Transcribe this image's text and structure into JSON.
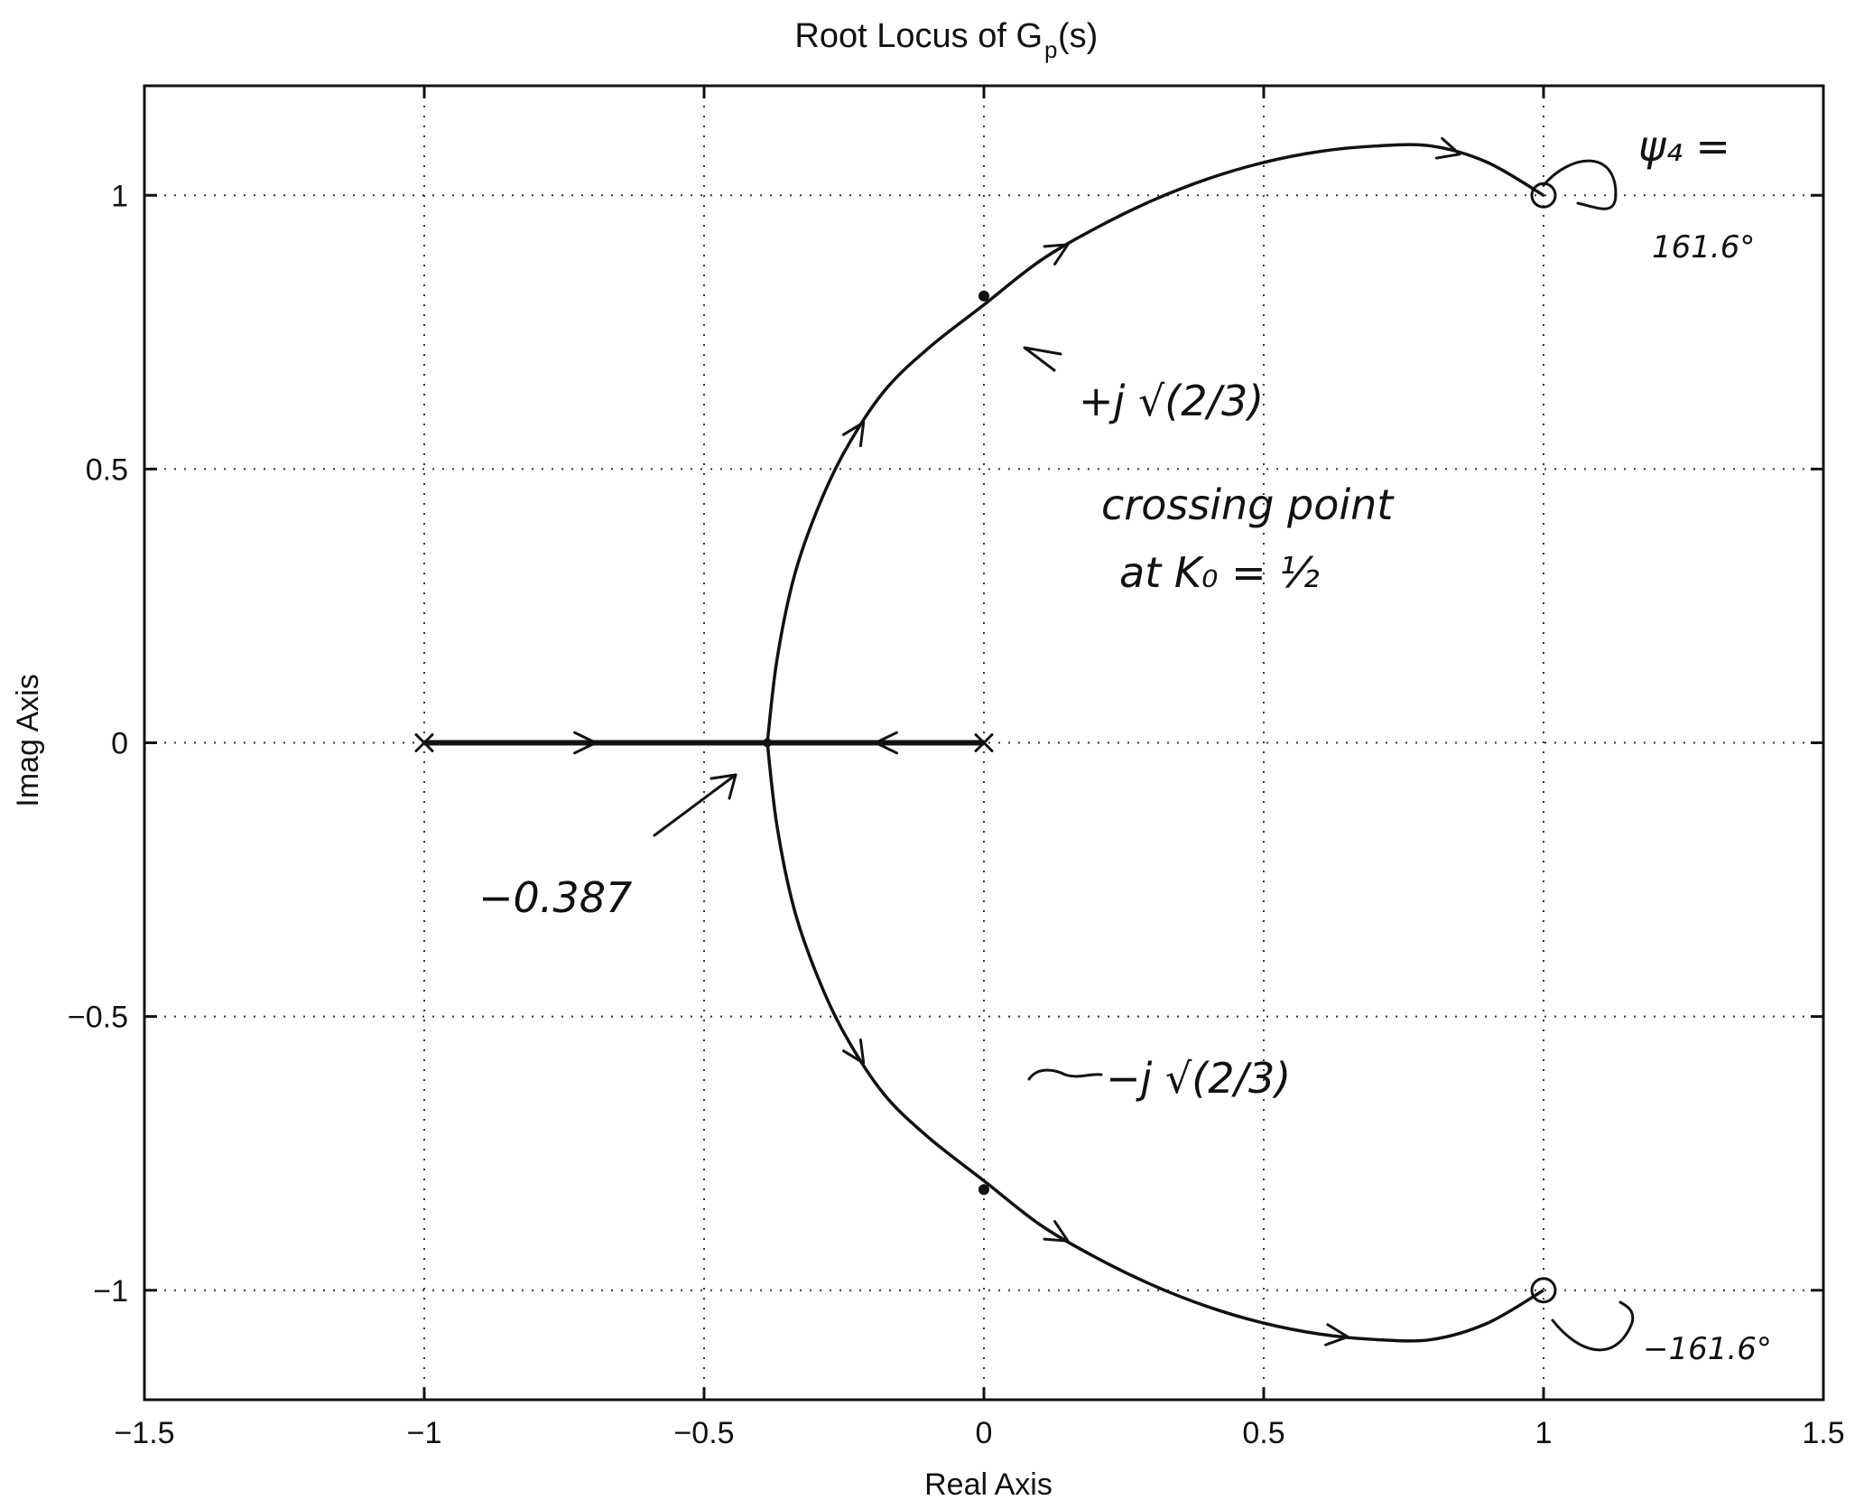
{
  "chart_data": {
    "type": "scatter",
    "title": "Root Locus of G",
    "title_subscript": "p",
    "title_suffix": "(s)",
    "xlabel": "Real Axis",
    "ylabel": "Imag Axis",
    "xlim": [
      -1.5,
      1.5
    ],
    "ylim": [
      -1.2,
      1.2
    ],
    "x_ticks": [
      -1.5,
      -1,
      -0.5,
      0,
      0.5,
      1,
      1.5
    ],
    "x_tick_labels": [
      "−1.5",
      "−1",
      "−0.5",
      "0",
      "0.5",
      "1",
      "1.5"
    ],
    "y_ticks": [
      -1,
      -0.5,
      0,
      0.5,
      1
    ],
    "y_tick_labels": [
      "−1",
      "−0.5",
      "0",
      "0.5",
      "1"
    ],
    "grid": true,
    "poles": [
      {
        "x": -1,
        "y": 0
      },
      {
        "x": 0,
        "y": 0
      }
    ],
    "zeros": [
      {
        "x": 1,
        "y": 1
      },
      {
        "x": 1,
        "y": -1
      }
    ],
    "breakaway_point": {
      "x": -0.387,
      "y": 0
    },
    "crossing_points": [
      {
        "x": 0,
        "y": 0.816
      },
      {
        "x": 0,
        "y": -0.816
      }
    ],
    "series": [
      {
        "branch": "real-axis segment",
        "x": [
          -1,
          -0.387,
          0
        ],
        "y": [
          0,
          0,
          0
        ]
      },
      {
        "branch": "upper branch",
        "x": [
          -0.387,
          -0.37,
          -0.34,
          -0.3,
          -0.25,
          -0.18,
          -0.1,
          0,
          0.1,
          0.2,
          0.3,
          0.4,
          0.5,
          0.6,
          0.7,
          0.8,
          0.9,
          1.0
        ],
        "y": [
          0,
          0.15,
          0.3,
          0.42,
          0.53,
          0.64,
          0.72,
          0.8,
          0.88,
          0.94,
          0.99,
          1.03,
          1.06,
          1.08,
          1.09,
          1.09,
          1.06,
          1.0
        ]
      },
      {
        "branch": "lower branch",
        "x": [
          -0.387,
          -0.37,
          -0.34,
          -0.3,
          -0.25,
          -0.18,
          -0.1,
          0,
          0.1,
          0.2,
          0.3,
          0.4,
          0.5,
          0.6,
          0.7,
          0.8,
          0.9,
          1.0
        ],
        "y": [
          0,
          -0.15,
          -0.3,
          -0.42,
          -0.53,
          -0.64,
          -0.72,
          -0.8,
          -0.88,
          -0.94,
          -0.99,
          -1.03,
          -1.06,
          -1.08,
          -1.09,
          -1.09,
          -1.06,
          -1.0
        ]
      }
    ],
    "annotations": {
      "upper_angle": "ψ₄ =",
      "upper_angle_value": "161.6°",
      "upper_crossing": "+j √(2/3)",
      "crossing_text_1": "crossing point",
      "crossing_text_2": "at K₀ = ½",
      "lower_crossing": "−j √(2/3)",
      "breakaway": "−0.387",
      "lower_angle": "−161.6°"
    }
  }
}
